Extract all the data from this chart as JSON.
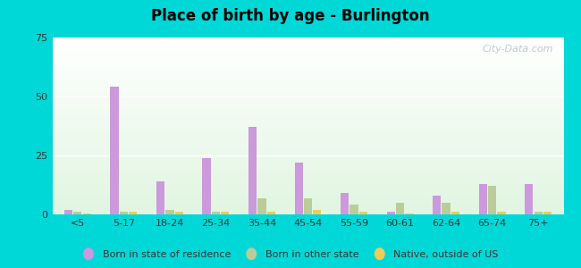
{
  "title": "Place of birth by age - Burlington",
  "categories": [
    "<5",
    "5-17",
    "18-24",
    "25-34",
    "35-44",
    "45-54",
    "55-59",
    "60-61",
    "62-64",
    "65-74",
    "75+"
  ],
  "born_in_state": [
    2,
    54,
    14,
    24,
    37,
    22,
    9,
    1,
    8,
    13,
    13
  ],
  "born_other_state": [
    1,
    1,
    2,
    1,
    7,
    7,
    4,
    5,
    5,
    12,
    1
  ],
  "native_outside_us": [
    0.5,
    1,
    1,
    1,
    1,
    2,
    1,
    0.5,
    1,
    1,
    1
  ],
  "color_state": "#cc99dd",
  "color_other_state": "#bbcc99",
  "color_native": "#eecc55",
  "ylim": [
    0,
    75
  ],
  "yticks": [
    0,
    25,
    50,
    75
  ],
  "outer_bg": "#00d8d8",
  "bar_width": 0.18,
  "bar_gap": 0.02,
  "legend_labels": [
    "Born in state of residence",
    "Born in other state",
    "Native, outside of US"
  ],
  "watermark": "City-Data.com"
}
